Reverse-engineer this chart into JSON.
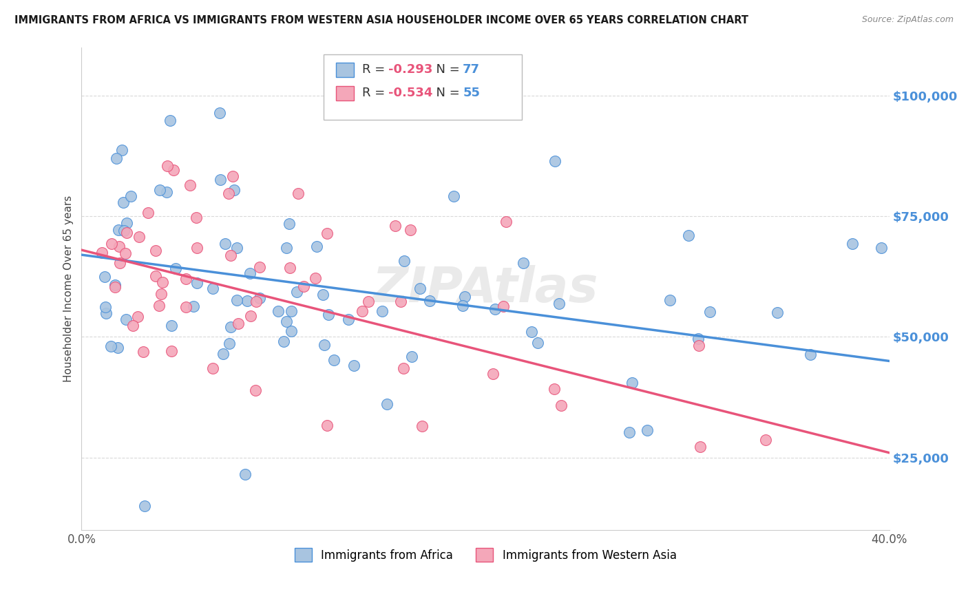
{
  "title": "IMMIGRANTS FROM AFRICA VS IMMIGRANTS FROM WESTERN ASIA HOUSEHOLDER INCOME OVER 65 YEARS CORRELATION CHART",
  "source": "Source: ZipAtlas.com",
  "ylabel": "Householder Income Over 65 years",
  "xlim": [
    0.0,
    0.4
  ],
  "ylim": [
    10000,
    110000
  ],
  "yticks": [
    25000,
    50000,
    75000,
    100000
  ],
  "ytick_labels": [
    "$25,000",
    "$50,000",
    "$75,000",
    "$100,000"
  ],
  "xticks": [
    0.0,
    0.05,
    0.1,
    0.15,
    0.2,
    0.25,
    0.3,
    0.35,
    0.4
  ],
  "africa_R": -0.293,
  "africa_N": 77,
  "western_asia_R": -0.534,
  "western_asia_N": 55,
  "africa_color": "#a8c4e0",
  "western_asia_color": "#f4a7b9",
  "africa_line_color": "#4a90d9",
  "western_asia_line_color": "#e8547a",
  "background_color": "#ffffff",
  "grid_color": "#d0d0d0",
  "africa_line_y0": 67000,
  "africa_line_y1": 45000,
  "western_asia_line_y0": 68000,
  "western_asia_line_y1": 26000
}
